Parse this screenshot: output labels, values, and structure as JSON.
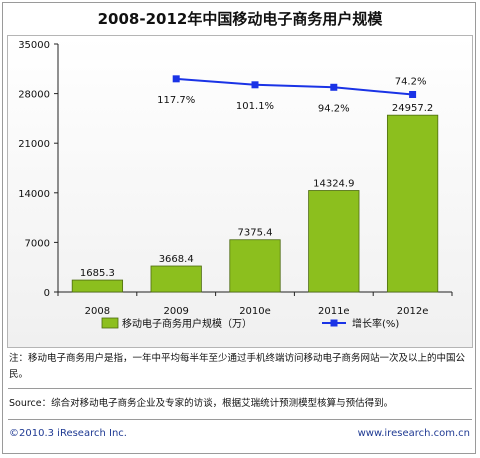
{
  "chart_data": {
    "type": "bar",
    "title": "2008-2012年中国移动电子商务用户规模",
    "categories": [
      "2008",
      "2009",
      "2010e",
      "2011e",
      "2012e"
    ],
    "series": [
      {
        "name": "移动电子商务用户规模（万）",
        "type": "bar",
        "axis": "left",
        "values": [
          1685.3,
          3668.4,
          7375.4,
          14324.9,
          24957.2
        ],
        "labels": [
          "1685.3",
          "3668.4",
          "7375.4",
          "14324.9",
          "24957.2"
        ],
        "color": "#8cbf1e"
      },
      {
        "name": "增长率(%)",
        "type": "line",
        "axis": "right-hidden",
        "values": [
          null,
          117.7,
          101.1,
          94.2,
          74.2
        ],
        "labels": [
          "",
          "117.7%",
          "101.1%",
          "94.2%",
          "74.2%"
        ],
        "color": "#1a33e6"
      }
    ],
    "ylim": [
      0,
      35000
    ],
    "yticks": [
      "0",
      "7000",
      "14000",
      "21000",
      "28000",
      "35000"
    ],
    "xlabel": "",
    "ylabel": "",
    "legend": "bottom-center",
    "grid": false
  },
  "footer": {
    "note": "注：移动电子商务用户是指，一年中平均每半年至少通过手机终端访问移动电子商务网站一次及以上的中国公民。",
    "source": "Source：综合对移动电子商务企业及专家的访谈，根据艾瑞统计预测模型核算与预估得到。",
    "copyright": "©2010.3 iResearch Inc.",
    "website": "www.iresearch.com.cn"
  }
}
